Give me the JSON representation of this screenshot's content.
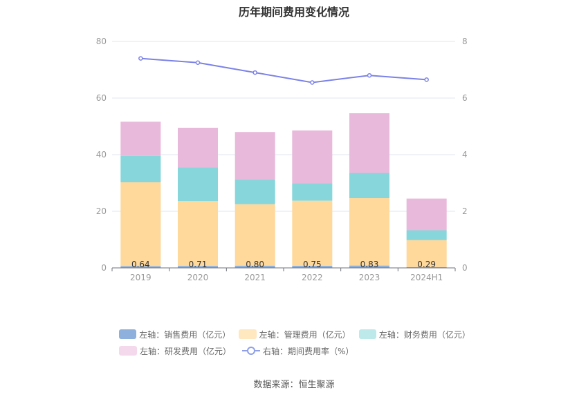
{
  "chart_data": {
    "type": "bar",
    "title": "历年期间费用变化情况",
    "categories": [
      "2019",
      "2020",
      "2021",
      "2022",
      "2023",
      "2024H1"
    ],
    "stacked": true,
    "left_axis": {
      "ylim": [
        0,
        80
      ],
      "ticks": [
        "0",
        "20",
        "40",
        "60",
        "80"
      ]
    },
    "right_axis": {
      "ylim": [
        0,
        8
      ],
      "ticks": [
        "0",
        "2",
        "4",
        "6",
        "8"
      ]
    },
    "series": [
      {
        "name": "左轴：销售费用（亿元）",
        "axis": "left",
        "color": "#8EB0DD",
        "values": [
          0.64,
          0.71,
          0.8,
          0.75,
          0.83,
          0.29
        ],
        "labels": [
          "0.64",
          "0.71",
          "0.80",
          "0.75",
          "0.83",
          "0.29"
        ]
      },
      {
        "name": "左轴：管理费用（亿元）",
        "axis": "left",
        "color": "#FFD89C",
        "values": [
          29.6,
          22.9,
          21.7,
          23.0,
          23.8,
          9.5
        ]
      },
      {
        "name": "左轴：财务费用（亿元）",
        "axis": "left",
        "color": "#86D6DB",
        "values": [
          9.3,
          11.9,
          8.6,
          6.2,
          8.9,
          3.5
        ]
      },
      {
        "name": "左轴：研发费用（亿元）",
        "axis": "left",
        "color": "#E8B9DB",
        "values": [
          12.1,
          14.0,
          16.9,
          18.6,
          21.1,
          11.2
        ]
      },
      {
        "name": "右轴：期间费用率（%）",
        "axis": "right",
        "type": "line",
        "color": "#7B82E6",
        "values": [
          7.4,
          7.25,
          6.9,
          6.55,
          6.8,
          6.65
        ]
      }
    ],
    "legend_position": "bottom",
    "grid": true
  },
  "legend": {
    "row1": [
      "左轴：销售费用（亿元）",
      "左轴：管理费用（亿元）",
      "左轴：财务费用（亿元）"
    ],
    "row2": [
      "左轴：研发费用（亿元）",
      "右轴：期间费用率（%）"
    ]
  },
  "source": "数据来源：恒生聚源"
}
